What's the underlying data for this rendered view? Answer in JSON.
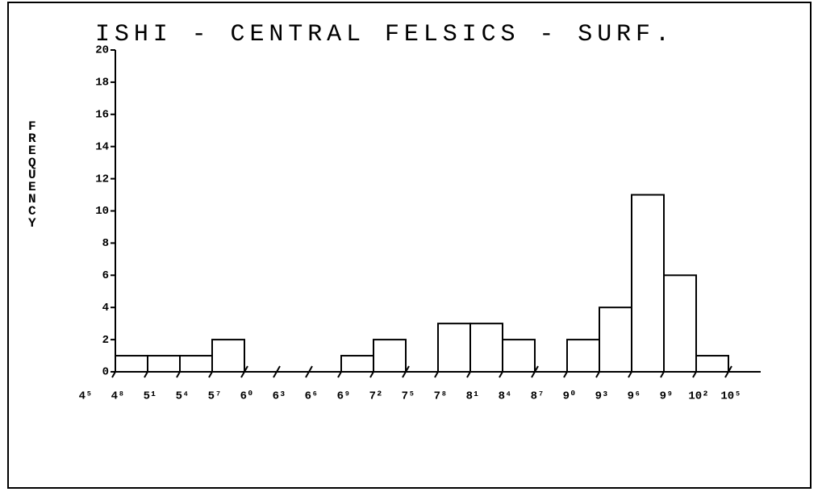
{
  "chart_data": {
    "type": "histogram",
    "title": "ISHI - CENTRAL FELSICS - SURF.",
    "ylabel": "FREQUENCY",
    "bins": [
      4.5,
      4.8,
      5.1,
      5.4,
      5.7,
      6.0,
      6.3,
      6.6,
      6.9,
      7.2,
      7.5,
      7.8,
      8.1,
      8.4,
      8.7,
      9.0,
      9.3,
      9.6,
      9.9,
      10.2,
      10.5
    ],
    "counts": [
      0,
      1,
      1,
      1,
      2,
      0,
      0,
      0,
      1,
      2,
      0,
      3,
      3,
      2,
      0,
      2,
      4,
      11,
      6,
      1
    ],
    "color": "#ffffff",
    "xlim": [
      4.8,
      10.8
    ],
    "xticks": [
      {
        "value": 4.5,
        "label": "4⁵"
      },
      {
        "value": 4.8,
        "label": "4⁸"
      },
      {
        "value": 5.1,
        "label": "5¹"
      },
      {
        "value": 5.4,
        "label": "5⁴"
      },
      {
        "value": 5.7,
        "label": "5⁷"
      },
      {
        "value": 6.0,
        "label": "6⁰"
      },
      {
        "value": 6.3,
        "label": "6³"
      },
      {
        "value": 6.6,
        "label": "6⁶"
      },
      {
        "value": 6.9,
        "label": "6⁹"
      },
      {
        "value": 7.2,
        "label": "7²"
      },
      {
        "value": 7.5,
        "label": "7⁵"
      },
      {
        "value": 7.8,
        "label": "7⁸"
      },
      {
        "value": 8.1,
        "label": "8¹"
      },
      {
        "value": 8.4,
        "label": "8⁴"
      },
      {
        "value": 8.7,
        "label": "8⁷"
      },
      {
        "value": 9.0,
        "label": "9⁰"
      },
      {
        "value": 9.3,
        "label": "9³"
      },
      {
        "value": 9.6,
        "label": "9⁶"
      },
      {
        "value": 9.9,
        "label": "9⁹"
      },
      {
        "value": 10.2,
        "label": "10²"
      },
      {
        "value": 10.5,
        "label": "10⁵"
      }
    ],
    "ylim": [
      0,
      20
    ],
    "yticks": [
      0,
      2,
      4,
      6,
      8,
      10,
      12,
      14,
      16,
      18,
      20
    ]
  }
}
